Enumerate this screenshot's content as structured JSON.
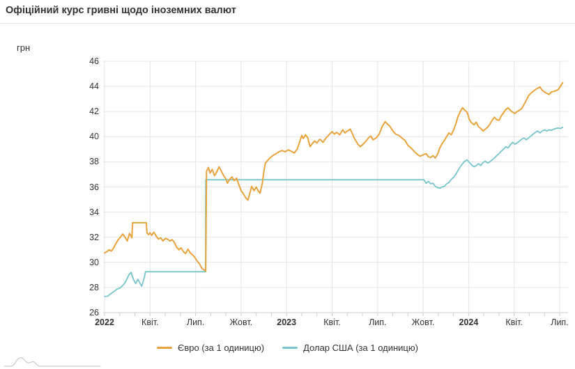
{
  "header": {
    "title": "Офіційний курс гривні щодо іноземних валют"
  },
  "chart_data": {
    "type": "line",
    "title": "Офіційний курс гривні щодо іноземних валют",
    "ylabel": "грн",
    "xlabel": "",
    "ylim": [
      26,
      46
    ],
    "grid": true,
    "legend_position": "bottom",
    "colors": {
      "grid": "#e6e6e6",
      "axis": "#cccccc",
      "text": "#333333"
    },
    "y_ticks": [
      26,
      28,
      30,
      32,
      34,
      36,
      38,
      40,
      42,
      44,
      46
    ],
    "x_ticks": [
      {
        "m": 0,
        "label": "2022",
        "bold": true
      },
      {
        "m": 3,
        "label": "Квіт.",
        "bold": false
      },
      {
        "m": 6,
        "label": "Лип.",
        "bold": false
      },
      {
        "m": 9,
        "label": "Жовт.",
        "bold": false
      },
      {
        "m": 12,
        "label": "2023",
        "bold": true
      },
      {
        "m": 15,
        "label": "Квіт.",
        "bold": false
      },
      {
        "m": 18,
        "label": "Лип.",
        "bold": false
      },
      {
        "m": 21,
        "label": "Жовт.",
        "bold": false
      },
      {
        "m": 24,
        "label": "2024",
        "bold": true
      },
      {
        "m": 27,
        "label": "Квіт.",
        "bold": false
      },
      {
        "m": 30,
        "label": "Лип.",
        "bold": false
      }
    ],
    "x_unit": "months since Jan 2022",
    "series": [
      {
        "name": "Євро (за 1 одиницю)",
        "color": "#E8A33D",
        "width": 2,
        "points": [
          [
            0.0,
            30.75
          ],
          [
            0.15,
            30.85
          ],
          [
            0.3,
            31.0
          ],
          [
            0.45,
            30.9
          ],
          [
            0.6,
            31.15
          ],
          [
            0.75,
            31.5
          ],
          [
            0.9,
            31.8
          ],
          [
            1.05,
            32.0
          ],
          [
            1.2,
            32.25
          ],
          [
            1.35,
            32.0
          ],
          [
            1.5,
            31.7
          ],
          [
            1.65,
            32.3
          ],
          [
            1.8,
            31.95
          ],
          [
            1.85,
            33.15
          ],
          [
            2.75,
            33.15
          ],
          [
            2.8,
            32.35
          ],
          [
            2.9,
            32.2
          ],
          [
            3.0,
            32.35
          ],
          [
            3.1,
            32.15
          ],
          [
            3.25,
            32.4
          ],
          [
            3.4,
            32.1
          ],
          [
            3.55,
            31.85
          ],
          [
            3.7,
            31.95
          ],
          [
            3.85,
            31.7
          ],
          [
            4.0,
            31.9
          ],
          [
            4.15,
            31.85
          ],
          [
            4.3,
            31.7
          ],
          [
            4.45,
            31.8
          ],
          [
            4.6,
            31.6
          ],
          [
            4.75,
            31.2
          ],
          [
            4.9,
            31.0
          ],
          [
            5.05,
            31.15
          ],
          [
            5.2,
            30.85
          ],
          [
            5.35,
            30.7
          ],
          [
            5.5,
            31.05
          ],
          [
            5.65,
            30.75
          ],
          [
            5.8,
            30.6
          ],
          [
            5.95,
            30.4
          ],
          [
            6.1,
            30.1
          ],
          [
            6.25,
            29.9
          ],
          [
            6.4,
            29.55
          ],
          [
            6.55,
            29.4
          ],
          [
            6.67,
            29.3
          ],
          [
            6.72,
            37.25
          ],
          [
            6.85,
            37.55
          ],
          [
            6.95,
            37.1
          ],
          [
            7.1,
            37.4
          ],
          [
            7.25,
            36.9
          ],
          [
            7.4,
            37.2
          ],
          [
            7.55,
            37.6
          ],
          [
            7.7,
            37.25
          ],
          [
            7.85,
            36.9
          ],
          [
            8.0,
            36.65
          ],
          [
            8.1,
            36.3
          ],
          [
            8.25,
            36.6
          ],
          [
            8.4,
            36.8
          ],
          [
            8.55,
            36.5
          ],
          [
            8.7,
            36.7
          ],
          [
            8.85,
            36.2
          ],
          [
            9.0,
            35.7
          ],
          [
            9.15,
            35.45
          ],
          [
            9.3,
            35.15
          ],
          [
            9.45,
            34.95
          ],
          [
            9.6,
            35.6
          ],
          [
            9.7,
            36.05
          ],
          [
            9.85,
            35.7
          ],
          [
            10.0,
            36.0
          ],
          [
            10.1,
            35.75
          ],
          [
            10.25,
            35.5
          ],
          [
            10.4,
            36.3
          ],
          [
            10.5,
            37.2
          ],
          [
            10.6,
            37.9
          ],
          [
            10.75,
            38.1
          ],
          [
            10.9,
            38.3
          ],
          [
            11.1,
            38.5
          ],
          [
            11.3,
            38.65
          ],
          [
            11.5,
            38.8
          ],
          [
            11.7,
            38.9
          ],
          [
            11.9,
            38.8
          ],
          [
            12.1,
            38.95
          ],
          [
            12.3,
            38.85
          ],
          [
            12.5,
            38.7
          ],
          [
            12.7,
            39.0
          ],
          [
            12.85,
            39.55
          ],
          [
            13.0,
            40.1
          ],
          [
            13.1,
            39.85
          ],
          [
            13.25,
            40.15
          ],
          [
            13.4,
            39.9
          ],
          [
            13.55,
            39.2
          ],
          [
            13.7,
            39.45
          ],
          [
            13.85,
            39.65
          ],
          [
            14.0,
            39.5
          ],
          [
            14.2,
            39.8
          ],
          [
            14.4,
            39.55
          ],
          [
            14.6,
            39.9
          ],
          [
            14.8,
            40.15
          ],
          [
            15.0,
            40.4
          ],
          [
            15.15,
            40.2
          ],
          [
            15.3,
            40.35
          ],
          [
            15.5,
            40.15
          ],
          [
            15.7,
            40.55
          ],
          [
            15.85,
            40.3
          ],
          [
            16.0,
            40.45
          ],
          [
            16.2,
            40.6
          ],
          [
            16.35,
            40.2
          ],
          [
            16.5,
            39.8
          ],
          [
            16.7,
            39.4
          ],
          [
            16.85,
            39.2
          ],
          [
            17.0,
            39.35
          ],
          [
            17.2,
            39.6
          ],
          [
            17.4,
            39.9
          ],
          [
            17.55,
            40.05
          ],
          [
            17.7,
            39.75
          ],
          [
            17.9,
            39.9
          ],
          [
            18.1,
            40.2
          ],
          [
            18.3,
            40.8
          ],
          [
            18.5,
            41.2
          ],
          [
            18.65,
            41.0
          ],
          [
            18.8,
            40.85
          ],
          [
            19.0,
            40.45
          ],
          [
            19.2,
            40.2
          ],
          [
            19.4,
            40.1
          ],
          [
            19.6,
            39.9
          ],
          [
            19.8,
            39.7
          ],
          [
            20.0,
            39.3
          ],
          [
            20.2,
            39.1
          ],
          [
            20.4,
            38.85
          ],
          [
            20.6,
            38.6
          ],
          [
            20.8,
            38.45
          ],
          [
            21.0,
            38.55
          ],
          [
            21.2,
            38.65
          ],
          [
            21.35,
            38.4
          ],
          [
            21.5,
            38.35
          ],
          [
            21.65,
            38.5
          ],
          [
            21.8,
            38.3
          ],
          [
            21.95,
            38.6
          ],
          [
            22.1,
            39.1
          ],
          [
            22.25,
            39.45
          ],
          [
            22.4,
            39.7
          ],
          [
            22.55,
            40.0
          ],
          [
            22.7,
            40.3
          ],
          [
            22.85,
            40.15
          ],
          [
            23.0,
            40.5
          ],
          [
            23.15,
            41.0
          ],
          [
            23.3,
            41.6
          ],
          [
            23.45,
            42.0
          ],
          [
            23.6,
            42.3
          ],
          [
            23.75,
            42.1
          ],
          [
            23.9,
            41.95
          ],
          [
            24.05,
            41.35
          ],
          [
            24.2,
            41.1
          ],
          [
            24.35,
            40.95
          ],
          [
            24.5,
            41.15
          ],
          [
            24.65,
            40.8
          ],
          [
            24.8,
            40.65
          ],
          [
            24.95,
            40.45
          ],
          [
            25.1,
            40.6
          ],
          [
            25.25,
            40.75
          ],
          [
            25.4,
            41.0
          ],
          [
            25.55,
            41.3
          ],
          [
            25.7,
            41.55
          ],
          [
            25.85,
            41.35
          ],
          [
            26.0,
            41.3
          ],
          [
            26.15,
            41.65
          ],
          [
            26.3,
            41.9
          ],
          [
            26.45,
            42.15
          ],
          [
            26.6,
            42.3
          ],
          [
            26.75,
            42.1
          ],
          [
            26.9,
            41.95
          ],
          [
            27.05,
            41.85
          ],
          [
            27.2,
            42.0
          ],
          [
            27.35,
            42.1
          ],
          [
            27.5,
            42.25
          ],
          [
            27.65,
            42.55
          ],
          [
            27.8,
            42.9
          ],
          [
            27.95,
            43.25
          ],
          [
            28.1,
            43.45
          ],
          [
            28.25,
            43.6
          ],
          [
            28.4,
            43.75
          ],
          [
            28.55,
            43.85
          ],
          [
            28.7,
            43.95
          ],
          [
            28.85,
            43.7
          ],
          [
            29.0,
            43.55
          ],
          [
            29.15,
            43.45
          ],
          [
            29.3,
            43.35
          ],
          [
            29.45,
            43.55
          ],
          [
            29.6,
            43.6
          ],
          [
            29.75,
            43.65
          ],
          [
            29.9,
            43.75
          ],
          [
            30.05,
            44.0
          ],
          [
            30.2,
            44.3
          ]
        ]
      },
      {
        "name": "Долар США (за 1 одиницю)",
        "color": "#77C5CB",
        "width": 1.8,
        "points": [
          [
            0.0,
            27.28
          ],
          [
            0.2,
            27.3
          ],
          [
            0.4,
            27.5
          ],
          [
            0.6,
            27.65
          ],
          [
            0.8,
            27.85
          ],
          [
            1.0,
            27.95
          ],
          [
            1.15,
            28.1
          ],
          [
            1.3,
            28.3
          ],
          [
            1.45,
            28.6
          ],
          [
            1.6,
            29.0
          ],
          [
            1.75,
            29.2
          ],
          [
            1.9,
            28.65
          ],
          [
            2.05,
            28.3
          ],
          [
            2.2,
            28.65
          ],
          [
            2.35,
            28.3
          ],
          [
            2.45,
            28.1
          ],
          [
            2.6,
            28.7
          ],
          [
            2.7,
            29.25
          ],
          [
            6.66,
            29.25
          ],
          [
            6.67,
            36.57
          ],
          [
            21.05,
            36.57
          ],
          [
            21.2,
            36.3
          ],
          [
            21.35,
            36.45
          ],
          [
            21.5,
            36.25
          ],
          [
            21.65,
            36.3
          ],
          [
            21.8,
            36.05
          ],
          [
            21.95,
            35.95
          ],
          [
            22.1,
            35.9
          ],
          [
            22.25,
            36.0
          ],
          [
            22.4,
            36.05
          ],
          [
            22.55,
            36.25
          ],
          [
            22.7,
            36.35
          ],
          [
            22.85,
            36.6
          ],
          [
            23.0,
            36.75
          ],
          [
            23.15,
            37.0
          ],
          [
            23.3,
            37.3
          ],
          [
            23.45,
            37.6
          ],
          [
            23.6,
            37.85
          ],
          [
            23.75,
            38.05
          ],
          [
            23.9,
            38.15
          ],
          [
            24.05,
            37.95
          ],
          [
            24.2,
            37.75
          ],
          [
            24.35,
            37.6
          ],
          [
            24.5,
            37.7
          ],
          [
            24.65,
            37.85
          ],
          [
            24.8,
            37.7
          ],
          [
            24.95,
            37.95
          ],
          [
            25.1,
            38.05
          ],
          [
            25.25,
            37.9
          ],
          [
            25.4,
            38.0
          ],
          [
            25.55,
            38.15
          ],
          [
            25.7,
            38.3
          ],
          [
            25.85,
            38.5
          ],
          [
            26.0,
            38.65
          ],
          [
            26.15,
            38.85
          ],
          [
            26.3,
            39.0
          ],
          [
            26.45,
            39.2
          ],
          [
            26.6,
            39.1
          ],
          [
            26.75,
            39.35
          ],
          [
            26.9,
            39.55
          ],
          [
            27.05,
            39.4
          ],
          [
            27.2,
            39.5
          ],
          [
            27.35,
            39.65
          ],
          [
            27.5,
            39.8
          ],
          [
            27.65,
            39.9
          ],
          [
            27.8,
            39.75
          ],
          [
            27.95,
            39.9
          ],
          [
            28.1,
            40.05
          ],
          [
            28.25,
            40.2
          ],
          [
            28.4,
            40.35
          ],
          [
            28.55,
            40.45
          ],
          [
            28.7,
            40.3
          ],
          [
            28.85,
            40.45
          ],
          [
            29.0,
            40.55
          ],
          [
            29.15,
            40.45
          ],
          [
            29.3,
            40.55
          ],
          [
            29.45,
            40.5
          ],
          [
            29.6,
            40.6
          ],
          [
            29.75,
            40.65
          ],
          [
            29.9,
            40.7
          ],
          [
            30.05,
            40.65
          ],
          [
            30.2,
            40.75
          ]
        ]
      }
    ]
  }
}
